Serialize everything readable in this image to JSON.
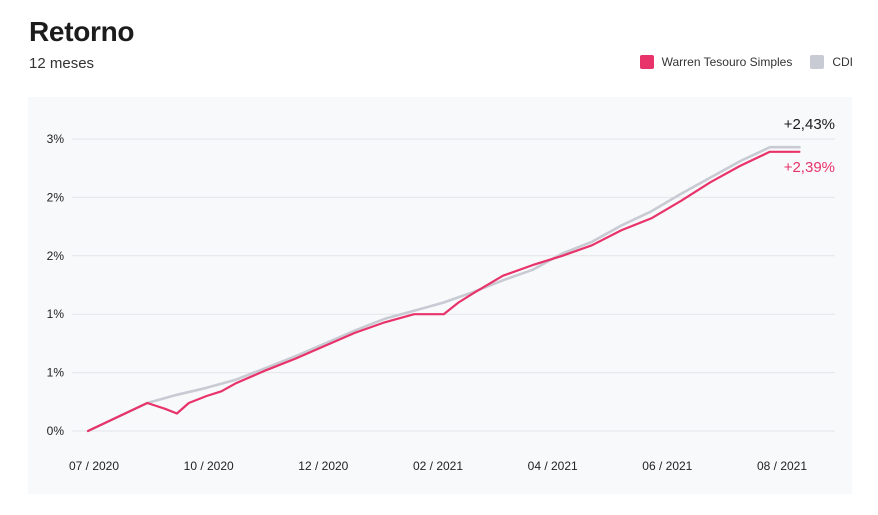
{
  "header": {
    "title": "Retorno",
    "subtitle": "12 meses"
  },
  "legend": [
    {
      "label": "Warren Tesouro Simples",
      "color": "#e8336a"
    },
    {
      "label": "CDI",
      "color": "#c8cbd3"
    }
  ],
  "chart_data": {
    "type": "line",
    "title": "Retorno",
    "subtitle": "12 meses",
    "xlabel": "",
    "ylabel": "",
    "x_ticks": [
      "07 / 2020",
      "10 / 2020",
      "12 / 2020",
      "02 / 2021",
      "04 / 2021",
      "06 / 2021",
      "08 / 2021"
    ],
    "y_ticks": [
      "0%",
      "1%",
      "1%",
      "2%",
      "2%",
      "3%"
    ],
    "y_tick_values": [
      0,
      0.5,
      1.0,
      1.5,
      2.0,
      2.5
    ],
    "ylim": [
      0,
      2.5
    ],
    "grid": true,
    "legend_position": "top-right",
    "series": [
      {
        "name": "Warren Tesouro Simples",
        "color": "#e8336a",
        "final_label": "+2,39%",
        "x": [
          0,
          0.5,
          1.0,
          1.3,
          1.5,
          1.7,
          2.0,
          2.25,
          2.5,
          3.0,
          3.5,
          4.0,
          4.5,
          5.0,
          5.5,
          6.0,
          6.25,
          6.5,
          7.0,
          7.5,
          8.0,
          8.5,
          9.0,
          9.5,
          10.0,
          10.5,
          11.0,
          11.5,
          12.0
        ],
        "values": [
          0,
          0.12,
          0.24,
          0.19,
          0.15,
          0.24,
          0.3,
          0.34,
          0.41,
          0.52,
          0.62,
          0.73,
          0.84,
          0.93,
          1.0,
          1.0,
          1.1,
          1.18,
          1.33,
          1.42,
          1.5,
          1.59,
          1.72,
          1.82,
          1.97,
          2.13,
          2.27,
          2.39,
          2.39
        ]
      },
      {
        "name": "CDI",
        "color": "#c8cbd3",
        "final_label": "+2,43%",
        "x": [
          0,
          0.5,
          1.0,
          1.5,
          2.0,
          2.5,
          3.0,
          3.5,
          4.0,
          4.5,
          5.0,
          5.5,
          6.0,
          6.5,
          7.0,
          7.5,
          8.0,
          8.5,
          9.0,
          9.5,
          10.0,
          10.5,
          11.0,
          11.5,
          12.0
        ],
        "values": [
          0,
          0.12,
          0.24,
          0.31,
          0.37,
          0.44,
          0.54,
          0.64,
          0.75,
          0.86,
          0.96,
          1.03,
          1.1,
          1.19,
          1.29,
          1.38,
          1.52,
          1.62,
          1.76,
          1.88,
          2.03,
          2.17,
          2.31,
          2.43,
          2.43
        ]
      }
    ]
  }
}
